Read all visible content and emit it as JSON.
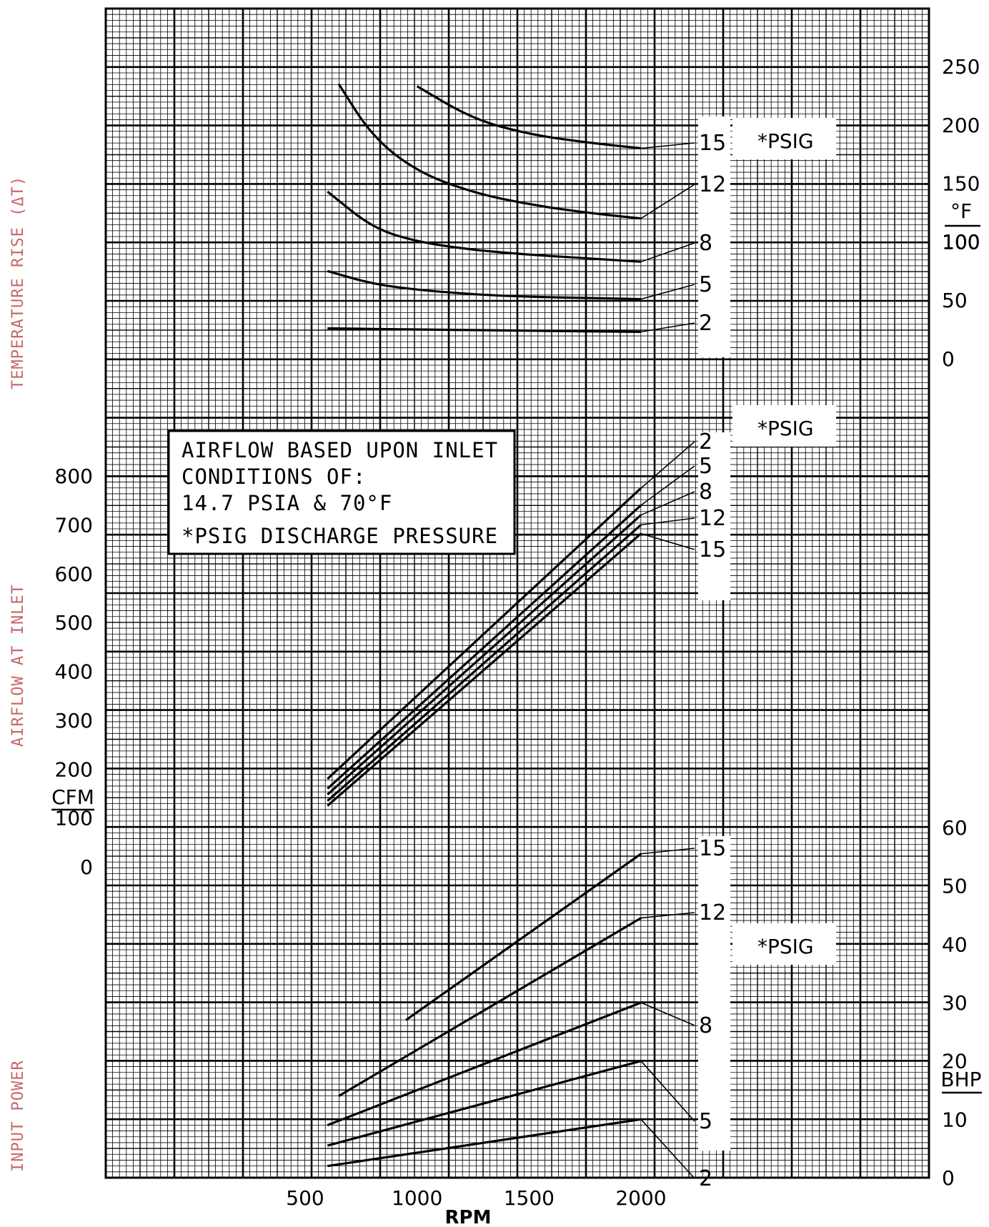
{
  "side_labels": {
    "temperature": "TEMPERATURE RISE (ΔT)",
    "airflow": "AIRFLOW AT INLET",
    "power": "INPUT POWER"
  },
  "note": {
    "line1": "AIRFLOW BASED UPON INLET",
    "line2": "CONDITIONS OF:",
    "line3": "14.7 PSIA & 70°F",
    "line4": "*PSIG DISCHARGE PRESSURE"
  },
  "psig_label": "*PSIG",
  "colors": {
    "grid": "#000000",
    "curve": "#000000",
    "side_label": "#c8686b",
    "background": "#ffffff"
  },
  "chart_data": [
    {
      "type": "line",
      "panel": "temperature",
      "xlabel": "RPM",
      "ylabel": "°F/100",
      "y_unit_top": "°F",
      "y_unit_bottom": "100",
      "xlim": [
        500,
        2000
      ],
      "ylim": [
        0,
        250
      ],
      "x_ticks": [
        "500",
        "1000",
        "1500",
        "2000"
      ],
      "y_ticks": [
        "0",
        "50",
        "100",
        "150",
        "200",
        "250"
      ],
      "legend_title": "*PSIG",
      "series": [
        {
          "name": "15",
          "x": [
            1000,
            1250,
            1500,
            1750,
            2000
          ],
          "y": [
            233,
            205,
            192,
            185,
            180
          ]
        },
        {
          "name": "12",
          "x": [
            650,
            800,
            1000,
            1250,
            1500,
            1750,
            2000
          ],
          "y": [
            235,
            190,
            160,
            142,
            132,
            125,
            120
          ]
        },
        {
          "name": "8",
          "x": [
            600,
            800,
            1000,
            1250,
            1500,
            1750,
            2000
          ],
          "y": [
            143,
            112,
            100,
            93,
            89,
            86,
            83
          ]
        },
        {
          "name": "5",
          "x": [
            600,
            800,
            1000,
            1250,
            1500,
            1750,
            2000
          ],
          "y": [
            75,
            64,
            59,
            55,
            53,
            52,
            51
          ]
        },
        {
          "name": "2",
          "x": [
            600,
            1000,
            1500,
            2000
          ],
          "y": [
            26,
            25,
            24,
            23
          ]
        }
      ]
    },
    {
      "type": "line",
      "panel": "airflow",
      "xlabel": "RPM",
      "ylabel": "CFM",
      "xlim": [
        500,
        2000
      ],
      "ylim": [
        0,
        800
      ],
      "x_ticks": [
        "500",
        "1000",
        "1500",
        "2000"
      ],
      "y_ticks": [
        "0",
        "100",
        "200",
        "300",
        "400",
        "500",
        "600",
        "700",
        "800"
      ],
      "legend_title": "*PSIG",
      "series": [
        {
          "name": "2",
          "x": [
            600,
            2000
          ],
          "y": [
            180,
            775
          ]
        },
        {
          "name": "5",
          "x": [
            600,
            2000
          ],
          "y": [
            160,
            740
          ]
        },
        {
          "name": "8",
          "x": [
            600,
            2000
          ],
          "y": [
            148,
            720
          ]
        },
        {
          "name": "12",
          "x": [
            600,
            2000
          ],
          "y": [
            135,
            700
          ]
        },
        {
          "name": "15",
          "x": [
            600,
            2000
          ],
          "y": [
            125,
            682
          ]
        }
      ]
    },
    {
      "type": "line",
      "panel": "power",
      "xlabel": "RPM",
      "ylabel": "BHP",
      "xlim": [
        500,
        2000
      ],
      "ylim": [
        0,
        60
      ],
      "x_ticks": [
        "500",
        "1000",
        "1500",
        "2000"
      ],
      "y_ticks": [
        "0",
        "10",
        "20",
        "30",
        "40",
        "50",
        "60"
      ],
      "legend_title": "*PSIG",
      "series": [
        {
          "name": "15",
          "x": [
            950,
            2000
          ],
          "y": [
            27,
            55.5
          ]
        },
        {
          "name": "12",
          "x": [
            650,
            2000
          ],
          "y": [
            14,
            44.5
          ]
        },
        {
          "name": "8",
          "x": [
            600,
            2000
          ],
          "y": [
            9,
            30
          ]
        },
        {
          "name": "5",
          "x": [
            600,
            2000
          ],
          "y": [
            5.5,
            20
          ]
        },
        {
          "name": "2",
          "x": [
            600,
            2000
          ],
          "y": [
            2,
            10
          ]
        }
      ]
    }
  ],
  "x_axis": {
    "ticks": [
      "500",
      "1000",
      "1500",
      "2000"
    ],
    "label": "RPM"
  }
}
